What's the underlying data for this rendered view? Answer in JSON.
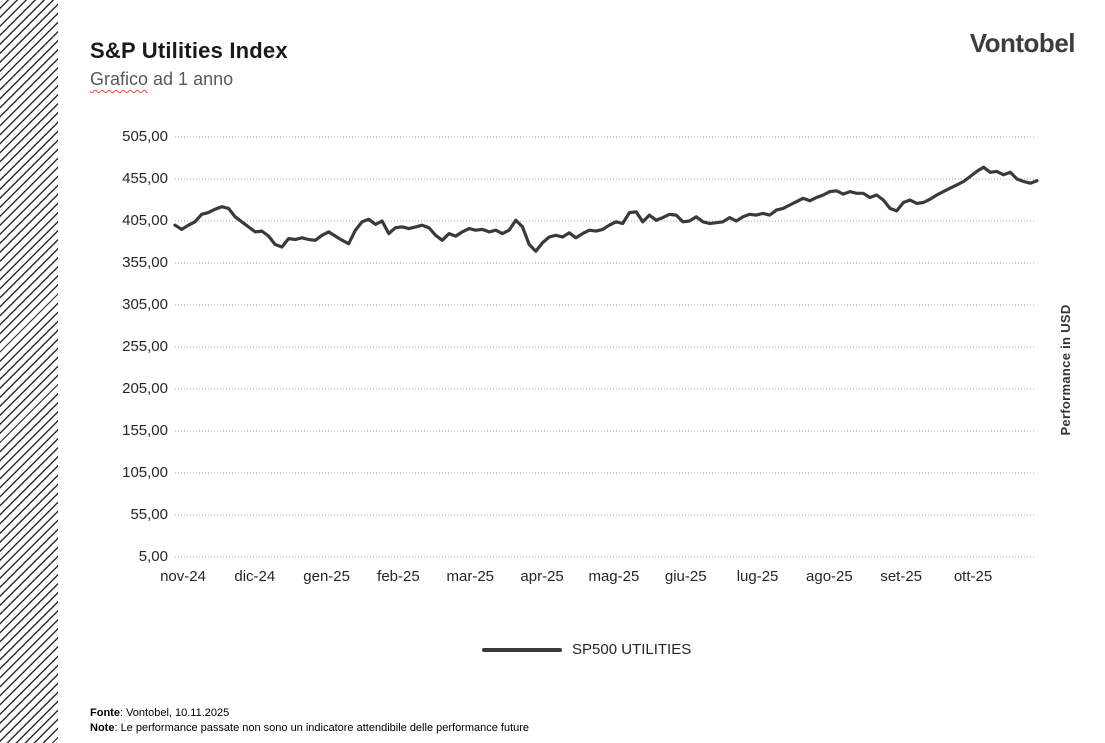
{
  "brand": {
    "logo_text": "Vontobel"
  },
  "header": {
    "title": "S&P Utilities Index",
    "subtitle_word": "Grafico",
    "subtitle_rest": " ad 1 anno"
  },
  "axis": {
    "right_label": "Performance in USD"
  },
  "legend": {
    "series_label": "SP500 UTILITIES"
  },
  "footer": {
    "source_label": "Fonte",
    "source_text": ": Vontobel, 10.11.2025",
    "note_label": "Note",
    "note_text": ": Le performance passate non sono un indicatore attendibile delle performance future"
  },
  "colors": {
    "line": "#3a3a3a",
    "grid": "#aaaaaa",
    "title_text": "#1a1a1a",
    "subtitle_text": "#595959",
    "squiggle_red": "#e8493e",
    "tick_text": "#262626",
    "hatch": "#2e2e2e"
  },
  "chart_data": {
    "type": "line",
    "title": "S&P Utilities Index — Grafico ad 1 anno",
    "ylabel": "Performance in USD",
    "ylim": [
      5,
      505
    ],
    "grid": "horizontal-dotted",
    "legend_position": "bottom-center",
    "number_format": "it-IT (comma decimals)",
    "y_ticks": [
      {
        "value": 505,
        "label": "505,00"
      },
      {
        "value": 455,
        "label": "455,00"
      },
      {
        "value": 405,
        "label": "405,00"
      },
      {
        "value": 355,
        "label": "355,00"
      },
      {
        "value": 305,
        "label": "305,00"
      },
      {
        "value": 255,
        "label": "255,00"
      },
      {
        "value": 205,
        "label": "205,00"
      },
      {
        "value": 155,
        "label": "155,00"
      },
      {
        "value": 105,
        "label": "105,00"
      },
      {
        "value": 55,
        "label": "55,00"
      },
      {
        "value": 5,
        "label": "5,00"
      }
    ],
    "categories": [
      "nov-24",
      "dic-24",
      "gen-25",
      "feb-25",
      "mar-25",
      "apr-25",
      "mag-25",
      "giu-25",
      "lug-25",
      "ago-25",
      "set-25",
      "ott-25"
    ],
    "series": [
      {
        "name": "SP500 UTILITIES",
        "color": "#3a3a3a",
        "values": [
          400,
          395,
          400,
          404,
          413,
          415,
          419,
          422,
          420,
          410,
          404,
          398,
          392,
          393,
          387,
          377,
          374,
          384,
          383,
          385,
          383,
          382,
          388,
          392,
          387,
          382,
          378,
          394,
          404,
          407,
          401,
          405,
          390,
          397,
          398,
          396,
          398,
          400,
          397,
          388,
          382,
          390,
          387,
          392,
          396,
          394,
          395,
          392,
          394,
          390,
          394,
          406,
          398,
          377,
          369,
          379,
          386,
          388,
          386,
          391,
          385,
          390,
          394,
          393,
          395,
          400,
          404,
          402,
          415,
          416,
          404,
          412,
          406,
          409,
          413,
          412,
          404,
          405,
          410,
          404,
          402,
          403,
          404,
          409,
          405,
          410,
          413,
          412,
          414,
          412,
          418,
          420,
          424,
          428,
          432,
          429,
          433,
          436,
          440,
          441,
          437,
          440,
          438,
          438,
          433,
          436,
          430,
          420,
          417,
          427,
          430,
          426,
          427,
          431,
          436,
          440,
          444,
          448,
          452,
          458,
          464,
          469,
          463,
          464,
          460,
          463,
          455,
          452,
          450,
          453
        ]
      }
    ]
  }
}
